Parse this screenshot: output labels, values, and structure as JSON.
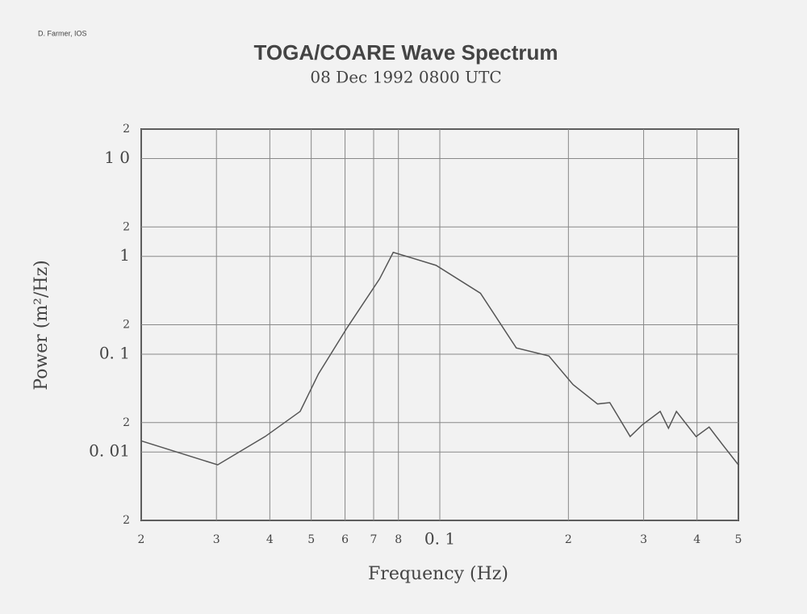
{
  "credit": "D. Farmer, IOS",
  "chart_data": {
    "type": "line",
    "title": "TOGA/COARE Wave Spectrum",
    "subtitle": "08 Dec 1992 0800 UTC",
    "x_label": "Frequency (Hz)",
    "y_label": "Power (m²/Hz)",
    "xscale": "log",
    "yscale": "log",
    "grid": true,
    "x": [
      0.02,
      0.0302,
      0.039,
      0.0471,
      0.052,
      0.0607,
      0.0723,
      0.0778,
      0.098,
      0.1245,
      0.151,
      0.18,
      0.205,
      0.234,
      0.25,
      0.279,
      0.298,
      0.328,
      0.343,
      0.358,
      0.398,
      0.427,
      0.459,
      0.5
    ],
    "series": [
      {
        "name": "Power",
        "color": "#555555",
        "values": [
          0.013,
          0.0074,
          0.0144,
          0.026,
          0.063,
          0.187,
          0.59,
          1.1,
          0.81,
          0.42,
          0.116,
          0.096,
          0.049,
          0.031,
          0.032,
          0.0144,
          0.019,
          0.026,
          0.0175,
          0.026,
          0.0144,
          0.018,
          0.0119,
          0.0074
        ]
      }
    ],
    "xlim": [
      0.02,
      0.5
    ],
    "xticks": [
      {
        "value": 0.02,
        "label": "2"
      },
      {
        "value": 0.03,
        "label": "3"
      },
      {
        "value": 0.04,
        "label": "4"
      },
      {
        "value": 0.05,
        "label": "5"
      },
      {
        "value": 0.06,
        "label": "6"
      },
      {
        "value": 0.07,
        "label": "7"
      },
      {
        "value": 0.08,
        "label": "8"
      },
      {
        "value": 0.1,
        "label": "0. 1"
      },
      {
        "value": 0.2,
        "label": "2"
      },
      {
        "value": 0.3,
        "label": "3"
      },
      {
        "value": 0.4,
        "label": "4"
      },
      {
        "value": 0.5,
        "label": "5"
      }
    ],
    "ylim": [
      0.002,
      20
    ],
    "yticks": [
      {
        "value": 0.002,
        "label": "2"
      },
      {
        "value": 0.01,
        "label": "0. 01"
      },
      {
        "value": 0.02,
        "label": "2"
      },
      {
        "value": 0.1,
        "label": "0. 1"
      },
      {
        "value": 0.2,
        "label": "2"
      },
      1,
      {
        "value": 2,
        "label": "2"
      },
      {
        "value": 10,
        "label": "1 0"
      },
      {
        "value": 20,
        "label": "2"
      }
    ]
  }
}
